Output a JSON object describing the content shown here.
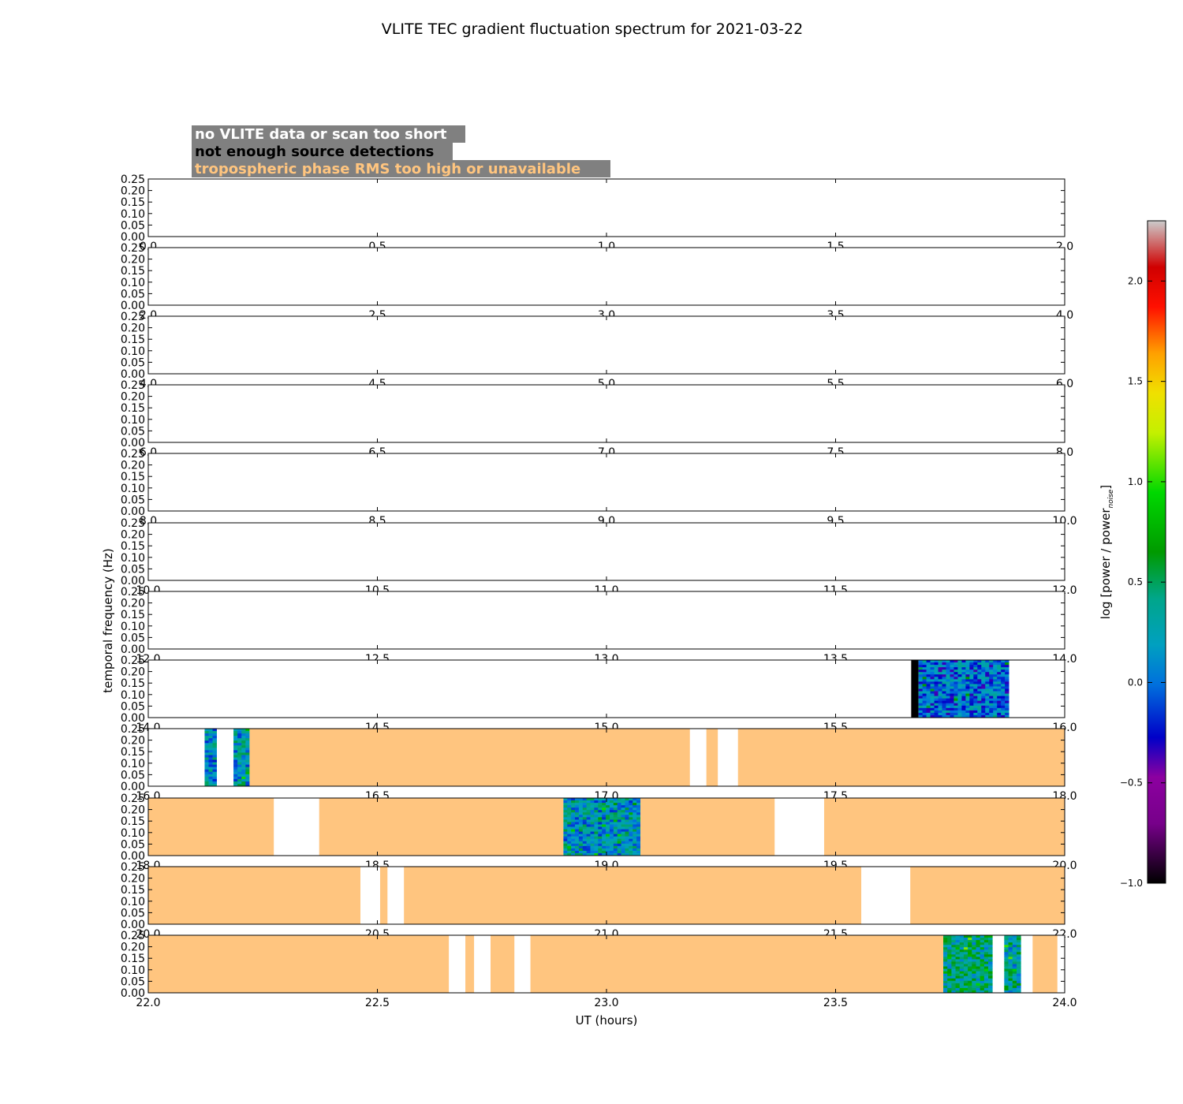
{
  "chart_data": {
    "type": "heatmap",
    "title": "VLITE TEC gradient fluctuation spectrum for 2021-03-22",
    "xlabel": "UT (hours)",
    "ylabel": "temporal frequency (Hz)",
    "ylim": [
      0,
      0.25
    ],
    "yticks": [
      "0.00",
      "0.05",
      "0.10",
      "0.15",
      "0.20",
      "0.25"
    ],
    "legend": {
      "placement": "top-left",
      "entries": [
        {
          "label": "no VLITE data or scan too short",
          "color": "#ffffff"
        },
        {
          "label": "not enough source detections",
          "color": "#000000"
        },
        {
          "label": "tropospheric phase RMS too high or unavailable",
          "color": "#ffc57f"
        }
      ],
      "background": "#808080"
    },
    "colorbar": {
      "label": "log [power / power",
      "label_sub": "noise",
      "label_end": "]",
      "min": -1.0,
      "max": 2.3,
      "ticks": [
        "−1.0",
        "−0.5",
        "0.0",
        "0.5",
        "1.0",
        "1.5",
        "2.0"
      ],
      "tick_values": [
        -1.0,
        -0.5,
        0.0,
        0.5,
        1.0,
        1.5,
        2.0
      ],
      "colormap": "nipy_spectral"
    },
    "panels": [
      {
        "xlim": [
          0,
          2
        ],
        "xticks": [
          "0.0",
          "0.5",
          "1.0",
          "1.5",
          "2.0"
        ],
        "segments": []
      },
      {
        "xlim": [
          2,
          4
        ],
        "xticks": [
          "2.0",
          "2.5",
          "3.0",
          "3.5",
          "4.0"
        ],
        "segments": []
      },
      {
        "xlim": [
          4,
          6
        ],
        "xticks": [
          "4.0",
          "4.5",
          "5.0",
          "5.5",
          "6.0"
        ],
        "segments": []
      },
      {
        "xlim": [
          6,
          8
        ],
        "xticks": [
          "6.0",
          "6.5",
          "7.0",
          "7.5",
          "8.0"
        ],
        "segments": []
      },
      {
        "xlim": [
          8,
          10
        ],
        "xticks": [
          "8.0",
          "8.5",
          "9.0",
          "9.5",
          "10.0"
        ],
        "segments": []
      },
      {
        "xlim": [
          10,
          12
        ],
        "xticks": [
          "10.0",
          "10.5",
          "11.0",
          "11.5",
          "12.0"
        ],
        "segments": []
      },
      {
        "xlim": [
          12,
          14
        ],
        "xticks": [
          "12.0",
          "12.5",
          "13.0",
          "13.5",
          "14.0"
        ],
        "segments": []
      },
      {
        "xlim": [
          14,
          16
        ],
        "xticks": [
          "14.0",
          "14.5",
          "15.0",
          "15.5",
          "16.0"
        ],
        "segments": [
          {
            "x0": 15.665,
            "x1": 15.681,
            "kind": "detections"
          },
          {
            "x0": 15.681,
            "x1": 15.878,
            "kind": "spectrum",
            "level": 0.0
          }
        ]
      },
      {
        "xlim": [
          16,
          18
        ],
        "xticks": [
          "16.0",
          "16.5",
          "17.0",
          "17.5",
          "18.0"
        ],
        "segments": [
          {
            "x0": 16.123,
            "x1": 16.149,
            "kind": "spectrum",
            "level": 0.15
          },
          {
            "x0": 16.186,
            "x1": 16.221,
            "kind": "spectrum",
            "level": 0.2
          },
          {
            "x0": 16.221,
            "x1": 17.182,
            "kind": "troposphere"
          },
          {
            "x0": 17.218,
            "x1": 17.243,
            "kind": "troposphere"
          },
          {
            "x0": 17.287,
            "x1": 18.0,
            "kind": "troposphere"
          }
        ]
      },
      {
        "xlim": [
          18,
          20
        ],
        "xticks": [
          "18.0",
          "18.5",
          "19.0",
          "19.5",
          "20.0"
        ],
        "segments": [
          {
            "x0": 18.0,
            "x1": 18.274,
            "kind": "troposphere"
          },
          {
            "x0": 18.373,
            "x1": 18.906,
            "kind": "troposphere"
          },
          {
            "x0": 18.906,
            "x1": 19.074,
            "kind": "spectrum",
            "level": 0.2
          },
          {
            "x0": 19.074,
            "x1": 19.367,
            "kind": "troposphere"
          },
          {
            "x0": 19.475,
            "x1": 20.0,
            "kind": "troposphere"
          }
        ]
      },
      {
        "xlim": [
          20,
          22
        ],
        "xticks": [
          "20.0",
          "20.5",
          "21.0",
          "21.5",
          "22.0"
        ],
        "segments": [
          {
            "x0": 20.0,
            "x1": 20.463,
            "kind": "troposphere"
          },
          {
            "x0": 20.506,
            "x1": 20.522,
            "kind": "troposphere"
          },
          {
            "x0": 20.558,
            "x1": 21.556,
            "kind": "troposphere"
          },
          {
            "x0": 21.663,
            "x1": 22.0,
            "kind": "troposphere"
          }
        ]
      },
      {
        "xlim": [
          22,
          24
        ],
        "xticks": [
          "22.0",
          "22.5",
          "23.0",
          "23.5",
          "24.0"
        ],
        "segments": [
          {
            "x0": 22.0,
            "x1": 22.656,
            "kind": "troposphere"
          },
          {
            "x0": 22.692,
            "x1": 22.711,
            "kind": "troposphere"
          },
          {
            "x0": 22.747,
            "x1": 22.799,
            "kind": "troposphere"
          },
          {
            "x0": 22.834,
            "x1": 23.735,
            "kind": "troposphere"
          },
          {
            "x0": 23.735,
            "x1": 23.842,
            "kind": "spectrum",
            "level": 0.4
          },
          {
            "x0": 23.868,
            "x1": 23.904,
            "kind": "spectrum",
            "level": 0.3
          },
          {
            "x0": 23.93,
            "x1": 23.984,
            "kind": "troposphere"
          }
        ]
      }
    ]
  }
}
